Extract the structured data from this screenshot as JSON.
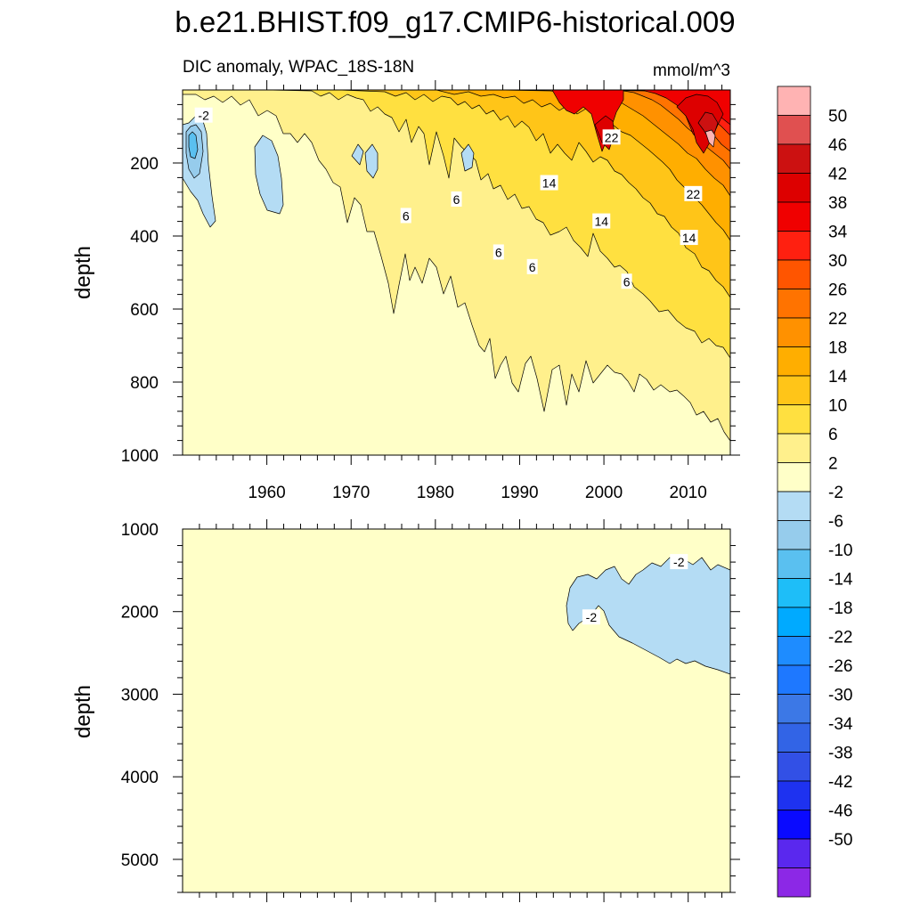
{
  "chart_data": [
    {
      "type": "contour",
      "panel": "upper",
      "title": "b.e21.BHIST.f09_g17.CMIP6-historical.009",
      "subtitle_left": "DIC anomaly, WPAC_18S-18N",
      "subtitle_right": "mmol/m^3",
      "ylabel": "depth",
      "xlim": [
        1950,
        2015
      ],
      "ylim": [
        0,
        1000
      ],
      "y_inverted": true,
      "x_ticks": [
        1960,
        1970,
        1980,
        1990,
        2000,
        2010
      ],
      "x_tick_labels": [
        "1960",
        "1970",
        "1980",
        "1990",
        "2000",
        "2010"
      ],
      "y_ticks": [
        200,
        400,
        600,
        800,
        1000
      ],
      "y_tick_labels": [
        "200",
        "400",
        "600",
        "800",
        "1000"
      ],
      "contour_labels": [
        {
          "text": "-2",
          "x": 1952.5,
          "y": 70
        },
        {
          "text": "22",
          "x": 2000.9,
          "y": 130
        },
        {
          "text": "14",
          "x": 1993.5,
          "y": 255
        },
        {
          "text": "6",
          "x": 1976.5,
          "y": 345
        },
        {
          "text": "6",
          "x": 1982.5,
          "y": 300
        },
        {
          "text": "14",
          "x": 1999.7,
          "y": 360
        },
        {
          "text": "22",
          "x": 2010.6,
          "y": 285
        },
        {
          "text": "14",
          "x": 2010.1,
          "y": 405
        },
        {
          "text": "6",
          "x": 1987.5,
          "y": 445
        },
        {
          "text": "6",
          "x": 1991.5,
          "y": 485
        },
        {
          "text": "6",
          "x": 2002.7,
          "y": 525
        }
      ]
    },
    {
      "type": "contour",
      "panel": "lower",
      "ylabel": "depth",
      "xlim": [
        1950,
        2015
      ],
      "ylim": [
        1000,
        5400
      ],
      "y_inverted": true,
      "y_ticks": [
        1000,
        2000,
        3000,
        4000,
        5000
      ],
      "y_tick_labels": [
        "1000",
        "2000",
        "3000",
        "4000",
        "5000"
      ],
      "contour_labels": [
        {
          "text": "-2",
          "x": 2008.9,
          "y": 1400
        },
        {
          "text": "-2",
          "x": 1998.5,
          "y": 2070
        }
      ]
    }
  ],
  "colorbar": {
    "labels": [
      "50",
      "46",
      "42",
      "38",
      "34",
      "30",
      "26",
      "22",
      "18",
      "14",
      "10",
      "6",
      "2",
      "-2",
      "-6",
      "-10",
      "-14",
      "-18",
      "-22",
      "-26",
      "-30",
      "-34",
      "-38",
      "-42",
      "-46",
      "-50"
    ],
    "colors": [
      "#FFB3B3",
      "#E05050",
      "#CC1111",
      "#DD0000",
      "#F00000",
      "#FF2010",
      "#FF5500",
      "#FF7300",
      "#FF9100",
      "#FFAE00",
      "#FFC518",
      "#FFE040",
      "#FFF08C",
      "#FFFFC8",
      "#B4DCF4",
      "#96CCEC",
      "#5AC0F0",
      "#1EBEF8",
      "#00AAFF",
      "#1E8CFF",
      "#1E78FF",
      "#3C78E6",
      "#3264E6",
      "#3250E6",
      "#1E32F0",
      "#0A0AFF",
      "#5A28EE",
      "#8C28E6"
    ]
  }
}
